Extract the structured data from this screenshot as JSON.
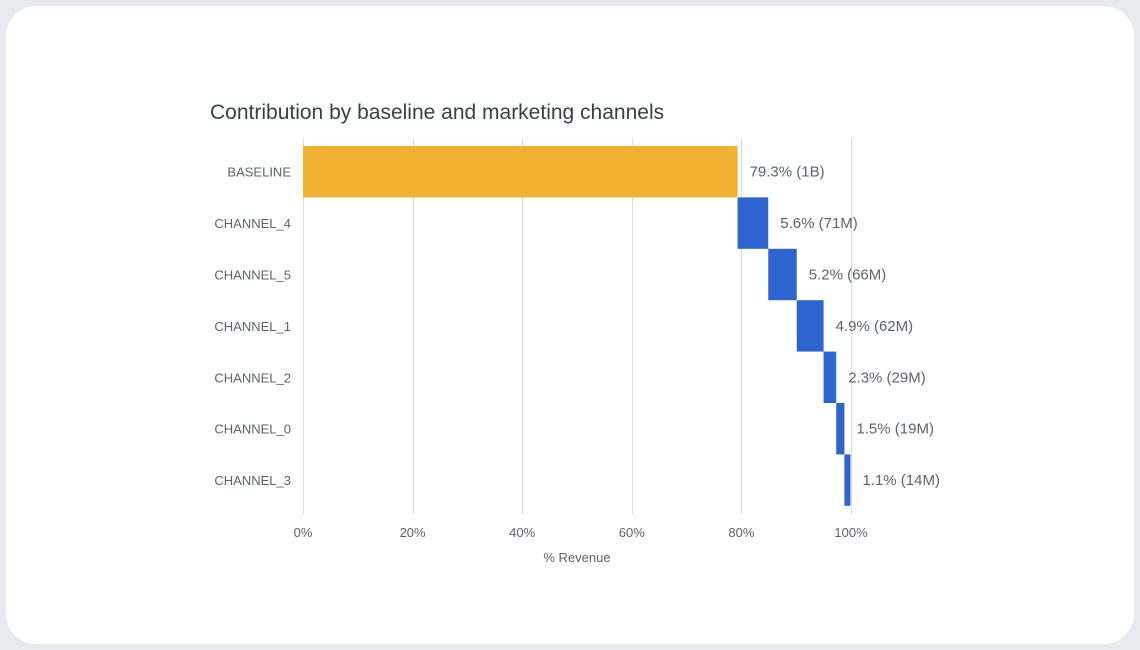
{
  "chart_data": {
    "type": "bar",
    "subtype": "waterfall-horizontal",
    "title": "Contribution by baseline and marketing channels",
    "xlabel": "% Revenue",
    "ylabel": "",
    "xlim": [
      0,
      100
    ],
    "grid": true,
    "x_ticks": [
      0,
      20,
      40,
      60,
      80,
      100
    ],
    "x_tick_labels": [
      "0%",
      "20%",
      "40%",
      "60%",
      "80%",
      "100%"
    ],
    "categories": [
      "BASELINE",
      "CHANNEL_4",
      "CHANNEL_5",
      "CHANNEL_1",
      "CHANNEL_2",
      "CHANNEL_0",
      "CHANNEL_3"
    ],
    "values": [
      79.3,
      5.6,
      5.2,
      4.9,
      2.3,
      1.5,
      1.1
    ],
    "value_labels": [
      "79.3% (1B)",
      "5.6% (71M)",
      "5.2% (66M)",
      "4.9% (62M)",
      "2.3% (29M)",
      "1.5% (19M)",
      "1.1% (14M)"
    ],
    "colors": [
      "#f0b032",
      "#2d64d0",
      "#2d64d0",
      "#2d64d0",
      "#2d64d0",
      "#2d64d0",
      "#2d64d0"
    ],
    "baseline_color": "#f0b032",
    "channel_color": "#2d64d0"
  }
}
